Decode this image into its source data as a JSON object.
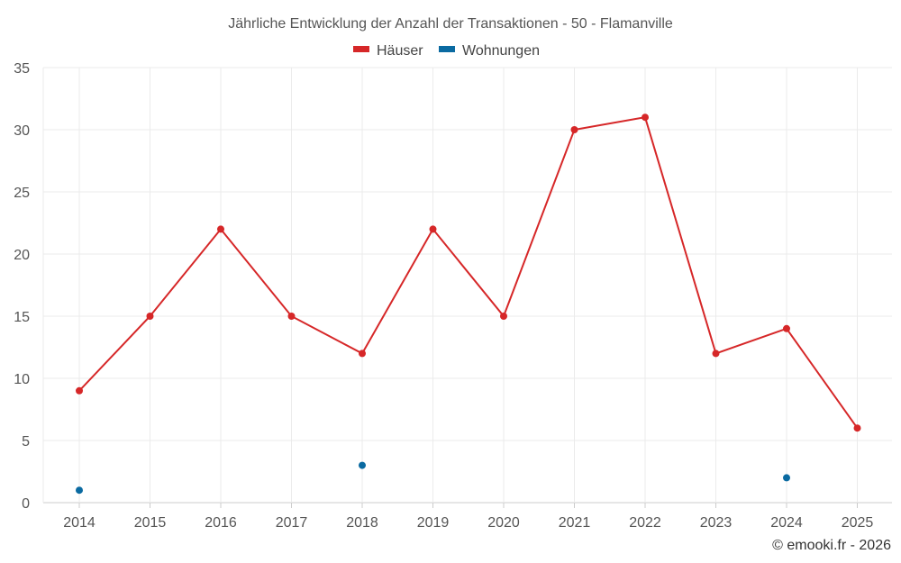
{
  "chart_data": {
    "type": "line",
    "title": "Jährliche Entwicklung der Anzahl der Transaktionen - 50 - Flamanville",
    "x": [
      "2014",
      "2015",
      "2016",
      "2017",
      "2018",
      "2019",
      "2020",
      "2021",
      "2022",
      "2023",
      "2024",
      "2025"
    ],
    "ylim": [
      0,
      35
    ],
    "yticks": [
      0,
      5,
      10,
      15,
      20,
      25,
      30,
      35
    ],
    "grid": true,
    "legend_position": "top-center",
    "series": [
      {
        "name": "Häuser",
        "color": "#d62728",
        "values": [
          9,
          15,
          22,
          15,
          12,
          22,
          15,
          30,
          31,
          12,
          14,
          6
        ]
      },
      {
        "name": "Wohnungen",
        "color": "#0a6aa1",
        "values": [
          1,
          null,
          null,
          null,
          3,
          null,
          null,
          null,
          null,
          null,
          2,
          null
        ]
      }
    ]
  },
  "footer": {
    "credit": "© emooki.fr - 2026"
  }
}
